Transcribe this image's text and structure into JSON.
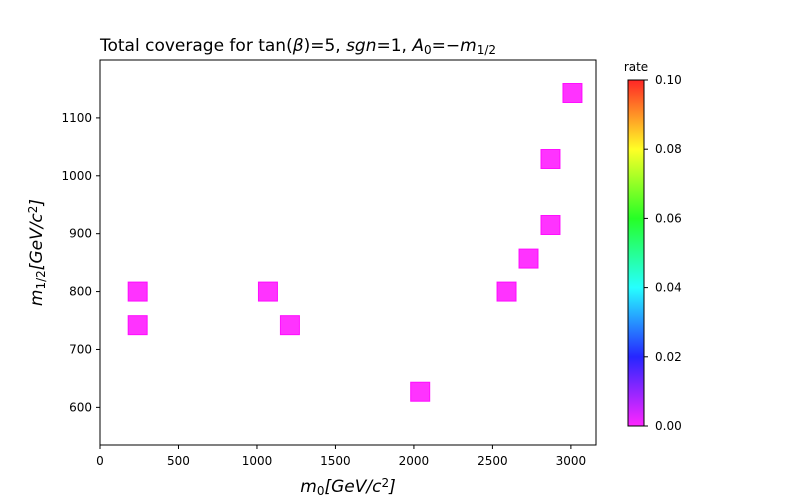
{
  "chart_data": {
    "type": "scatter",
    "title_parts": [
      {
        "t": "Total coverage for tan("
      },
      {
        "t": "β",
        "i": true
      },
      {
        "t": ")=5, "
      },
      {
        "t": "sgn",
        "i": true
      },
      {
        "t": "=1, "
      },
      {
        "t": "A",
        "i": true
      },
      {
        "t": "0",
        "sub": true
      },
      {
        "t": "=−"
      },
      {
        "t": "m",
        "i": true
      },
      {
        "t": "1/2",
        "sub": true
      }
    ],
    "xlabel_parts": [
      {
        "t": "m",
        "i": true
      },
      {
        "t": "0",
        "sub": true
      },
      {
        "t": "[GeV/c",
        "i": true
      },
      {
        "t": "2",
        "sup": true
      },
      {
        "t": "]",
        "i": true
      }
    ],
    "ylabel_parts": [
      {
        "t": "m",
        "i": true
      },
      {
        "t": "1/2",
        "sub": true
      },
      {
        "t": "[GeV/c",
        "i": true
      },
      {
        "t": "2",
        "sup": true
      },
      {
        "t": "]",
        "i": true
      }
    ],
    "xlim": [
      0,
      3160
    ],
    "ylim": [
      535,
      1200
    ],
    "xticks": [
      0,
      500,
      1000,
      1500,
      2000,
      2500,
      3000
    ],
    "yticks": [
      600,
      700,
      800,
      900,
      1000,
      1100
    ],
    "grid": false,
    "marker": "square",
    "points": [
      {
        "x": 240,
        "y": 800,
        "rate": 0.0
      },
      {
        "x": 240,
        "y": 742,
        "rate": 0.0
      },
      {
        "x": 1070,
        "y": 800,
        "rate": 0.0
      },
      {
        "x": 1210,
        "y": 742,
        "rate": 0.0
      },
      {
        "x": 2040,
        "y": 627,
        "rate": 0.0
      },
      {
        "x": 2590,
        "y": 800,
        "rate": 0.0
      },
      {
        "x": 2730,
        "y": 857,
        "rate": 0.0
      },
      {
        "x": 2870,
        "y": 915,
        "rate": 0.0
      },
      {
        "x": 2870,
        "y": 1029,
        "rate": 0.0
      },
      {
        "x": 3010,
        "y": 1143,
        "rate": 0.0
      }
    ],
    "colorbar": {
      "label": "rate",
      "range": [
        0.0,
        0.1
      ],
      "ticks": [
        "0.00",
        "0.02",
        "0.04",
        "0.06",
        "0.08",
        "0.10"
      ],
      "colormap": "gist_rainbow_r",
      "stops": [
        "#ff00ff",
        "#0000ff",
        "#00ffff",
        "#00ff00",
        "#ffff00",
        "#ff0000"
      ]
    }
  }
}
